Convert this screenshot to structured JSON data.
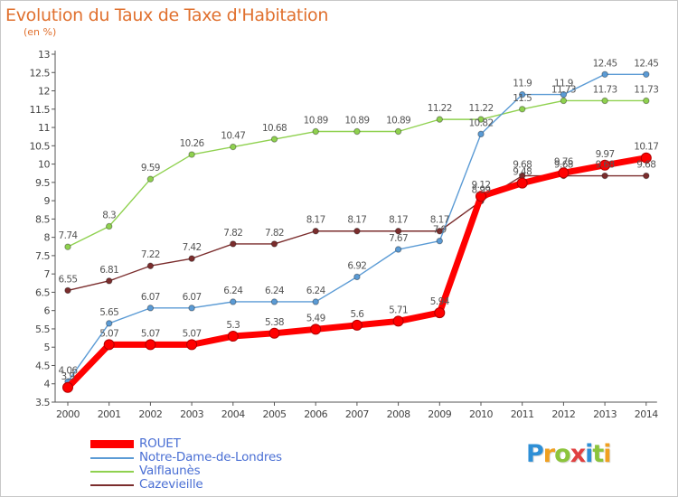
{
  "title": "Evolution du Taux de Taxe d'Habitation",
  "subtitle": "(en %)",
  "brand": "Proxiti",
  "chart_data": {
    "type": "line",
    "categories": [
      "2000",
      "2001",
      "2002",
      "2003",
      "2004",
      "2005",
      "2006",
      "2007",
      "2008",
      "2009",
      "2010",
      "2011",
      "2012",
      "2013",
      "2014"
    ],
    "ylim": [
      3.5,
      13
    ],
    "yticks": [
      "3.5",
      "4",
      "4.5",
      "5",
      "5.5",
      "6",
      "6.5",
      "7",
      "7.5",
      "8",
      "8.5",
      "9",
      "9.5",
      "10",
      "10.5",
      "11",
      "11.5",
      "12",
      "12.5",
      "13"
    ],
    "grid": false,
    "legend": "bottom-left",
    "series": [
      {
        "name": "ROUET",
        "color": "#ff0000",
        "values": [
          3.9,
          5.07,
          5.07,
          5.07,
          5.3,
          5.38,
          5.49,
          5.6,
          5.71,
          5.94,
          9.12,
          9.48,
          9.76,
          9.97,
          10.17
        ],
        "labels": [
          "3.9",
          "5.07",
          "5.07",
          "5.07",
          "5.3",
          "5.38",
          "5.49",
          "5.6",
          "5.71",
          "5.94",
          "9.12",
          "9.48",
          "9.76",
          "9.97",
          "10.17"
        ]
      },
      {
        "name": "Notre-Dame-de-Londres",
        "color": "#5b9bd5",
        "values": [
          4.06,
          5.65,
          6.07,
          6.07,
          6.24,
          6.24,
          6.24,
          6.92,
          7.67,
          7.9,
          10.82,
          11.9,
          11.9,
          12.45,
          12.45
        ],
        "labels": [
          "4.06",
          "5.65",
          "6.07",
          "6.07",
          "6.24",
          "6.24",
          "6.24",
          "6.92",
          "7.67",
          "7.9",
          "10.82",
          "11.9",
          "11.9",
          "12.45",
          "12.45"
        ]
      },
      {
        "name": "Valflaunès",
        "color": "#8fd14f",
        "values": [
          7.74,
          8.3,
          9.59,
          10.26,
          10.47,
          10.68,
          10.89,
          10.89,
          10.89,
          11.22,
          11.22,
          11.5,
          11.73,
          11.73,
          11.73
        ],
        "labels": [
          "7.74",
          "8.3",
          "9.59",
          "10.26",
          "10.47",
          "10.68",
          "10.89",
          "10.89",
          "10.89",
          "11.22",
          "11.22",
          "11.5",
          "11.73",
          "11.73",
          "11.73"
        ]
      },
      {
        "name": "Cazevieille",
        "color": "#7b2d2d",
        "values": [
          6.55,
          6.81,
          7.22,
          7.42,
          7.82,
          7.82,
          8.17,
          8.17,
          8.17,
          8.17,
          8.99,
          9.68,
          9.68,
          9.68,
          9.68
        ],
        "labels": [
          "6.55",
          "6.81",
          "7.22",
          "7.42",
          "7.82",
          "7.82",
          "8.17",
          "8.17",
          "8.17",
          "8.17",
          "8.99",
          "9.68",
          "9.68",
          "9.68",
          "9.68"
        ]
      }
    ]
  }
}
